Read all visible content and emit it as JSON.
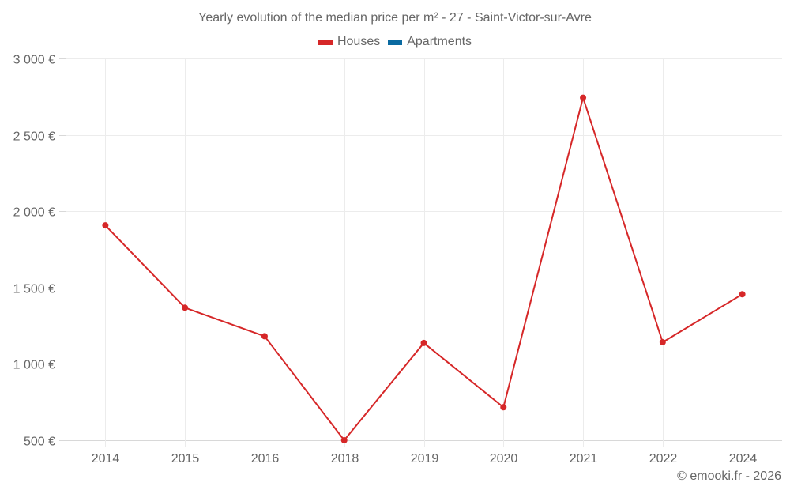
{
  "chart_data": {
    "type": "line",
    "title": "Yearly evolution of the median price per m² - 27 - Saint-Victor-sur-Avre",
    "xlabel": "",
    "ylabel": "",
    "categories": [
      "2014",
      "2015",
      "2016",
      "2018",
      "2019",
      "2020",
      "2021",
      "2022",
      "2024"
    ],
    "series": [
      {
        "name": "Houses",
        "color": "#d62728",
        "values": [
          1907,
          1368,
          1181,
          500,
          1137,
          716,
          2743,
          1142,
          1456
        ]
      },
      {
        "name": "Apartments",
        "color": "#0a6aa1",
        "values": []
      }
    ],
    "yticks": [
      500,
      1000,
      1500,
      2000,
      2500,
      3000
    ],
    "ytick_labels": [
      "500 €",
      "1 000 €",
      "1 500 €",
      "2 000 €",
      "2 500 €",
      "3 000 €"
    ],
    "ylim": [
      500,
      3000
    ],
    "grid": true,
    "legend_position": "top-center"
  },
  "legend": {
    "items": [
      {
        "label": "Houses",
        "color": "#d62728"
      },
      {
        "label": "Apartments",
        "color": "#0a6aa1"
      }
    ]
  },
  "credit": "© emooki.fr - 2026"
}
